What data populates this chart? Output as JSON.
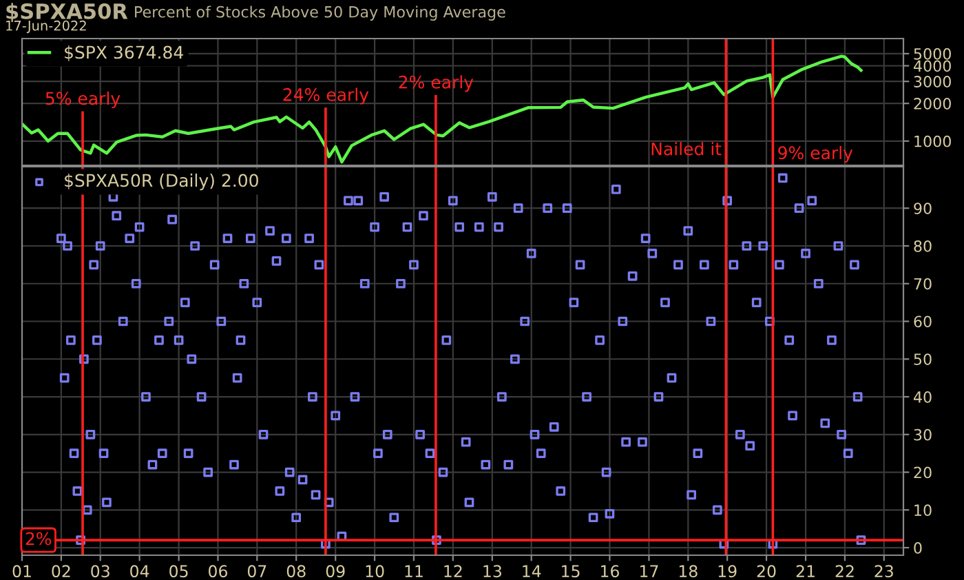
{
  "chart_data": [
    {
      "type": "line",
      "title": "$SPXA50R",
      "subtitle": "Percent of Stocks Above 50 Day Moving Average",
      "annotations": [
        "17-Jun-2022"
      ],
      "log": "y",
      "grid": true,
      "legend": "top left",
      "tick_labels": "y",
      "line_style": "solid",
      "xlim": [
        "2001-01-01",
        "2023-07-01"
      ],
      "xticks": [
        {
          "value": "2001",
          "label": null
        },
        {
          "value": "2002",
          "label": null
        },
        {
          "value": "2003",
          "label": null
        },
        {
          "value": "2004",
          "label": null
        },
        {
          "value": "2005",
          "label": null
        },
        {
          "value": "2006",
          "label": null
        },
        {
          "value": "2007",
          "label": null
        },
        {
          "value": "2008",
          "label": null
        },
        {
          "value": "2009",
          "label": null
        },
        {
          "value": "2010",
          "label": null
        },
        {
          "value": "2011",
          "label": null
        },
        {
          "value": "2012",
          "label": null
        },
        {
          "value": "2013",
          "label": null
        },
        {
          "value": "2014",
          "label": null
        },
        {
          "value": "2015",
          "label": null
        },
        {
          "value": "2016",
          "label": null
        },
        {
          "value": "2017",
          "label": null
        },
        {
          "value": "2018",
          "label": null
        },
        {
          "value": "2019",
          "label": null
        },
        {
          "value": "2020",
          "label": null
        },
        {
          "value": "2021",
          "label": null
        },
        {
          "value": "2022",
          "label": null
        },
        {
          "value": "2023",
          "label": null
        }
      ],
      "ylim": [
        640,
        6600
      ],
      "yticks": [
        1000,
        2000,
        3000,
        4000,
        5000
      ],
      "ref_lines": [
        {
          "axis": "x",
          "value": "2002-07-20",
          "label": "5% early",
          "color": "#ff2020"
        },
        {
          "axis": "x",
          "value": "2008-10-01",
          "label": "24% early",
          "color": "#ff2020"
        },
        {
          "axis": "x",
          "value": "2011-07-25",
          "label": "2% early",
          "color": "#ff2020"
        },
        {
          "axis": "x",
          "value": "2018-12-20",
          "label": "Nailed it",
          "color": "#ff2020"
        },
        {
          "axis": "x",
          "value": "2020-03-01",
          "label": "9% early",
          "color": "#ff2020"
        }
      ],
      "series": [
        {
          "name": "$SPX 3674.84",
          "color": "#5ef24a",
          "x": [
            "2001-01",
            "2001-04",
            "2001-06",
            "2001-09",
            "2001-12",
            "2002-03",
            "2002-07",
            "2002-10",
            "2002-11",
            "2003-03",
            "2003-06",
            "2003-12",
            "2004-03",
            "2004-08",
            "2004-12",
            "2005-04",
            "2005-12",
            "2006-05",
            "2006-06",
            "2006-12",
            "2007-07",
            "2007-08",
            "2007-10",
            "2008-03",
            "2008-05",
            "2008-07",
            "2008-10",
            "2008-11",
            "2009-01",
            "2009-03",
            "2009-06",
            "2009-12",
            "2010-04",
            "2010-07",
            "2010-12",
            "2011-04",
            "2011-08",
            "2011-10",
            "2012-03",
            "2012-06",
            "2012-12",
            "2013-12",
            "2014-10",
            "2014-12",
            "2015-05",
            "2015-08",
            "2016-02",
            "2016-12",
            "2017-12",
            "2018-01",
            "2018-02",
            "2018-09",
            "2018-12",
            "2019-07",
            "2019-12",
            "2020-02",
            "2020-03",
            "2020-06",
            "2020-12",
            "2021-06",
            "2021-12",
            "2022-01",
            "2022-03",
            "2022-05",
            "2022-06"
          ],
          "values": [
            1370,
            1160,
            1230,
            1000,
            1150,
            1150,
            850,
            800,
            930,
            800,
            980,
            1110,
            1120,
            1080,
            1210,
            1150,
            1250,
            1310,
            1230,
            1420,
            1550,
            1430,
            1560,
            1270,
            1420,
            1230,
            900,
            750,
            900,
            680,
            920,
            1115,
            1210,
            1030,
            1260,
            1360,
            1120,
            1100,
            1400,
            1280,
            1430,
            1850,
            1860,
            2060,
            2130,
            1870,
            1830,
            2240,
            2670,
            2870,
            2580,
            2930,
            2350,
            3020,
            3230,
            3390,
            2240,
            3100,
            3750,
            4300,
            4770,
            4700,
            4170,
            3900,
            3675
          ]
        }
      ]
    },
    {
      "type": "scatter",
      "grid": true,
      "legend": "top left",
      "marker": "square",
      "xlim": [
        "2001-01-01",
        "2023-07-01"
      ],
      "xticks": [
        {
          "value": "2001",
          "label": "01"
        },
        {
          "value": "2002",
          "label": "02"
        },
        {
          "value": "2003",
          "label": "03"
        },
        {
          "value": "2004",
          "label": "04"
        },
        {
          "value": "2005",
          "label": "05"
        },
        {
          "value": "2006",
          "label": "06"
        },
        {
          "value": "2007",
          "label": "07"
        },
        {
          "value": "2008",
          "label": "08"
        },
        {
          "value": "2009",
          "label": "09"
        },
        {
          "value": "2010",
          "label": "10"
        },
        {
          "value": "2011",
          "label": "11"
        },
        {
          "value": "2012",
          "label": "12"
        },
        {
          "value": "2013",
          "label": "13"
        },
        {
          "value": "2014",
          "label": "14"
        },
        {
          "value": "2015",
          "label": "15"
        },
        {
          "value": "2016",
          "label": "16"
        },
        {
          "value": "2017",
          "label": "17"
        },
        {
          "value": "2018",
          "label": "18"
        },
        {
          "value": "2019",
          "label": "19"
        },
        {
          "value": "2020",
          "label": "20"
        },
        {
          "value": "2021",
          "label": "21"
        },
        {
          "value": "2022",
          "label": "22"
        },
        {
          "value": "2023",
          "label": "23"
        }
      ],
      "ylim": [
        -2,
        101
      ],
      "yticks": [
        0,
        10,
        20,
        30,
        40,
        50,
        60,
        70,
        80,
        90
      ],
      "ref_lines": [
        {
          "axis": "x",
          "value": "2002-07-20",
          "color": "#ff2020"
        },
        {
          "axis": "x",
          "value": "2008-10-01",
          "color": "#ff2020"
        },
        {
          "axis": "x",
          "value": "2011-07-25",
          "color": "#ff2020"
        },
        {
          "axis": "x",
          "value": "2018-12-20",
          "color": "#ff2020"
        },
        {
          "axis": "x",
          "value": "2020-03-01",
          "color": "#ff2020"
        },
        {
          "axis": "y",
          "value": 2,
          "label": "2%",
          "color": "#ff2020"
        }
      ],
      "series": [
        {
          "name": "$SPXA50R (Daily) 2.00",
          "color": "#7b7bef",
          "x": [
            "2002-01",
            "2002-02",
            "2002-03",
            "2002-04",
            "2002-05",
            "2002-06",
            "2002-07",
            "2002-08",
            "2002-09",
            "2002-10",
            "2002-11",
            "2002-12",
            "2003-01",
            "2003-02",
            "2003-03",
            "2003-05",
            "2003-06",
            "2003-08",
            "2003-10",
            "2003-12",
            "2004-01",
            "2004-03",
            "2004-05",
            "2004-07",
            "2004-08",
            "2004-10",
            "2004-11",
            "2005-01",
            "2005-03",
            "2005-04",
            "2005-05",
            "2005-06",
            "2005-08",
            "2005-10",
            "2005-12",
            "2006-02",
            "2006-04",
            "2006-06",
            "2006-07",
            "2006-08",
            "2006-09",
            "2006-11",
            "2007-01",
            "2007-03",
            "2007-05",
            "2007-07",
            "2007-08",
            "2007-10",
            "2007-11",
            "2008-01",
            "2008-03",
            "2008-05",
            "2008-06",
            "2008-07",
            "2008-08",
            "2008-10",
            "2008-11",
            "2009-01",
            "2009-03",
            "2009-05",
            "2009-07",
            "2009-08",
            "2009-10",
            "2010-01",
            "2010-02",
            "2010-04",
            "2010-05",
            "2010-07",
            "2010-09",
            "2010-11",
            "2011-01",
            "2011-03",
            "2011-04",
            "2011-06",
            "2011-08",
            "2011-10",
            "2011-11",
            "2012-01",
            "2012-03",
            "2012-05",
            "2012-06",
            "2012-09",
            "2012-11",
            "2013-01",
            "2013-03",
            "2013-04",
            "2013-06",
            "2013-08",
            "2013-09",
            "2013-11",
            "2014-01",
            "2014-02",
            "2014-04",
            "2014-06",
            "2014-08",
            "2014-10",
            "2014-12",
            "2015-02",
            "2015-04",
            "2015-06",
            "2015-08",
            "2015-10",
            "2015-12",
            "2016-01",
            "2016-03",
            "2016-05",
            "2016-06",
            "2016-08",
            "2016-11",
            "2016-12",
            "2017-02",
            "2017-04",
            "2017-06",
            "2017-08",
            "2017-10",
            "2018-01",
            "2018-02",
            "2018-04",
            "2018-06",
            "2018-08",
            "2018-10",
            "2018-12",
            "2019-01",
            "2019-03",
            "2019-05",
            "2019-07",
            "2019-08",
            "2019-10",
            "2019-12",
            "2020-02",
            "2020-03",
            "2020-05",
            "2020-06",
            "2020-08",
            "2020-09",
            "2020-11",
            "2021-01",
            "2021-03",
            "2021-05",
            "2021-07",
            "2021-09",
            "2021-11",
            "2021-12",
            "2022-02",
            "2022-04",
            "2022-05",
            "2022-06"
          ],
          "values": [
            82,
            45,
            80,
            55,
            25,
            15,
            2,
            50,
            10,
            30,
            75,
            55,
            80,
            25,
            12,
            93,
            88,
            60,
            82,
            70,
            85,
            40,
            22,
            55,
            25,
            60,
            87,
            55,
            65,
            25,
            50,
            80,
            40,
            20,
            75,
            60,
            82,
            22,
            45,
            55,
            70,
            82,
            65,
            30,
            84,
            76,
            15,
            82,
            20,
            8,
            18,
            82,
            40,
            14,
            75,
            1,
            12,
            35,
            3,
            92,
            40,
            92,
            70,
            85,
            25,
            93,
            30,
            8,
            70,
            85,
            75,
            30,
            88,
            25,
            2,
            20,
            55,
            92,
            85,
            28,
            12,
            85,
            22,
            93,
            85,
            40,
            22,
            50,
            90,
            60,
            78,
            30,
            25,
            90,
            32,
            15,
            90,
            65,
            75,
            40,
            8,
            55,
            20,
            9,
            95,
            60,
            28,
            72,
            28,
            82,
            78,
            40,
            65,
            45,
            75,
            84,
            14,
            25,
            75,
            60,
            10,
            1,
            92,
            75,
            30,
            80,
            27,
            65,
            80,
            60,
            1,
            75,
            98,
            55,
            35,
            90,
            78,
            92,
            70,
            33,
            55,
            80,
            30,
            25,
            75,
            40,
            2
          ]
        }
      ]
    }
  ]
}
